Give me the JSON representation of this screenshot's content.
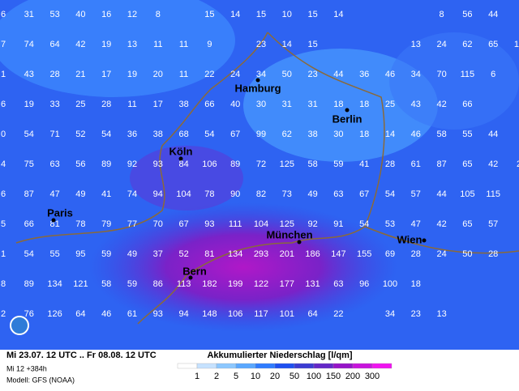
{
  "map": {
    "grid": {
      "rows": [
        [
          6,
          31,
          53,
          40,
          16,
          12,
          8,
          null,
          15,
          14,
          15,
          10,
          15,
          14,
          null,
          null,
          null,
          8,
          56,
          44,
          null
        ],
        [
          7,
          74,
          64,
          42,
          19,
          13,
          11,
          11,
          9,
          null,
          23,
          14,
          15,
          null,
          null,
          null,
          13,
          24,
          62,
          65,
          10
        ],
        [
          1,
          43,
          28,
          21,
          17,
          19,
          20,
          11,
          22,
          24,
          34,
          50,
          23,
          44,
          36,
          46,
          34,
          70,
          115,
          6,
          null
        ],
        [
          6,
          19,
          33,
          25,
          28,
          11,
          17,
          38,
          66,
          40,
          30,
          31,
          31,
          18,
          18,
          25,
          43,
          42,
          66,
          null,
          null
        ],
        [
          0,
          54,
          71,
          52,
          54,
          36,
          38,
          68,
          54,
          67,
          99,
          62,
          38,
          30,
          18,
          14,
          46,
          58,
          55,
          44,
          null
        ],
        [
          4,
          75,
          63,
          56,
          89,
          92,
          93,
          84,
          106,
          89,
          72,
          125,
          58,
          59,
          41,
          28,
          61,
          87,
          65,
          42,
          2
        ],
        [
          6,
          87,
          47,
          49,
          41,
          74,
          94,
          104,
          78,
          90,
          82,
          73,
          49,
          63,
          67,
          54,
          57,
          44,
          105,
          115,
          null
        ],
        [
          5,
          66,
          81,
          78,
          79,
          77,
          70,
          67,
          93,
          111,
          104,
          125,
          92,
          91,
          54,
          53,
          47,
          42,
          65,
          57,
          null
        ],
        [
          1,
          54,
          55,
          95,
          59,
          49,
          37,
          52,
          81,
          134,
          293,
          201,
          186,
          147,
          155,
          69,
          28,
          24,
          50,
          28,
          null
        ],
        [
          8,
          89,
          134,
          121,
          58,
          59,
          86,
          113,
          182,
          199,
          122,
          177,
          131,
          63,
          96,
          100,
          18,
          null,
          null,
          null,
          null
        ],
        [
          2,
          76,
          126,
          64,
          46,
          61,
          93,
          94,
          148,
          106,
          117,
          101,
          64,
          22,
          null,
          34,
          23,
          13,
          null,
          null,
          null
        ]
      ]
    },
    "cities": [
      {
        "name": "Hamburg"
      },
      {
        "name": "Berlin"
      },
      {
        "name": "Köln"
      },
      {
        "name": "Paris"
      },
      {
        "name": "München"
      },
      {
        "name": "Wien"
      },
      {
        "name": "Bern"
      }
    ],
    "footer": {
      "period": "Mi 23.07. 12 UTC .. Fr 08.08. 12 UTC",
      "run": "Mi 12 +384h",
      "model": "Modell: GFS (NOAA)"
    },
    "legend": {
      "title": "Akkumulierter Niederschlag [l/qm]",
      "ticks": [
        "1",
        "2",
        "5",
        "10",
        "20",
        "50",
        "100",
        "150",
        "200",
        "300"
      ],
      "colors": [
        "#ffffff",
        "#c6e2ff",
        "#8cc8ff",
        "#5aa8ff",
        "#2f7cff",
        "#1e50f0",
        "#3c3cd2",
        "#6428c8",
        "#9614c8",
        "#c814dc",
        "#f014f0"
      ]
    }
  }
}
